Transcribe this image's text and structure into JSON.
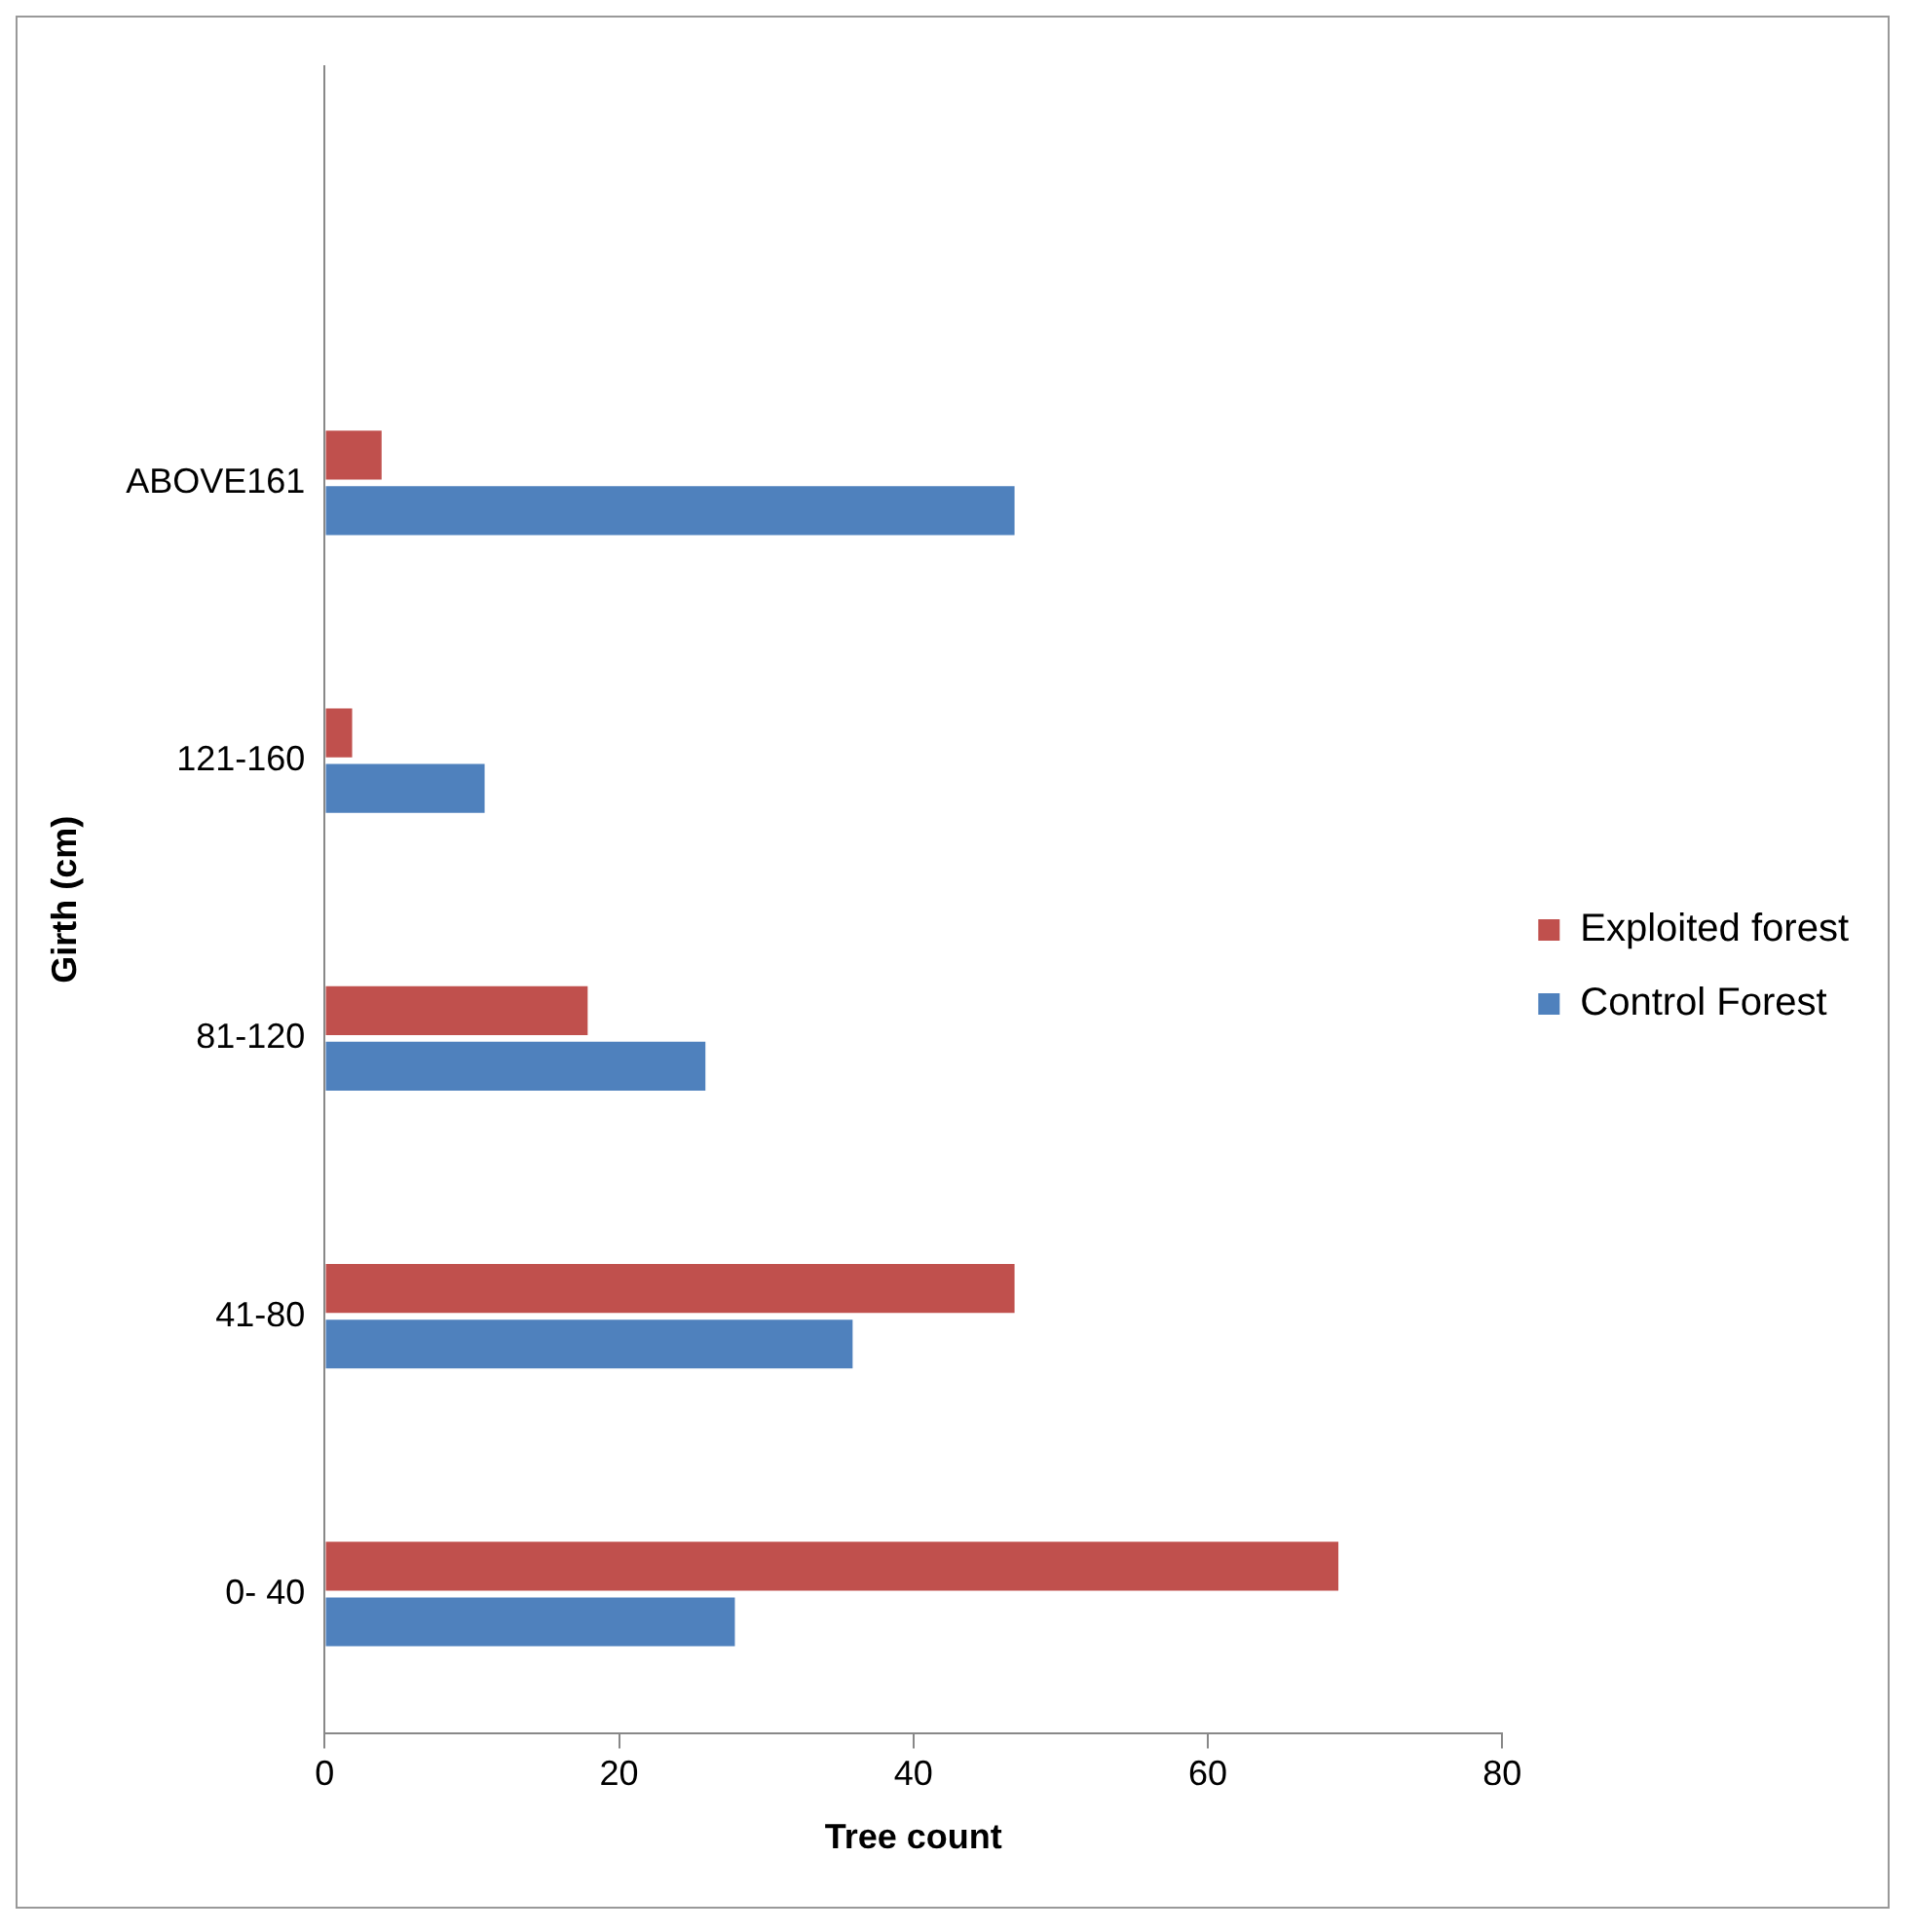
{
  "chart_data": {
    "type": "bar",
    "orientation": "horizontal",
    "xlabel": "Tree count",
    "ylabel": "Girth (cm)",
    "categories": [
      null,
      "ABOVE161",
      "121-160",
      "81-120",
      "41-80",
      "0- 40"
    ],
    "series": [
      {
        "name": "Exploited forest",
        "color": "#c0504d",
        "values": [
          null,
          4,
          2,
          18,
          47,
          69
        ]
      },
      {
        "name": "Control Forest",
        "color": "#4f81bd",
        "values": [
          null,
          47,
          11,
          26,
          36,
          28
        ]
      }
    ],
    "xlim": [
      0,
      80
    ],
    "xticks": [
      0,
      20,
      40,
      60,
      80
    ],
    "grid": false,
    "legend": "right"
  }
}
